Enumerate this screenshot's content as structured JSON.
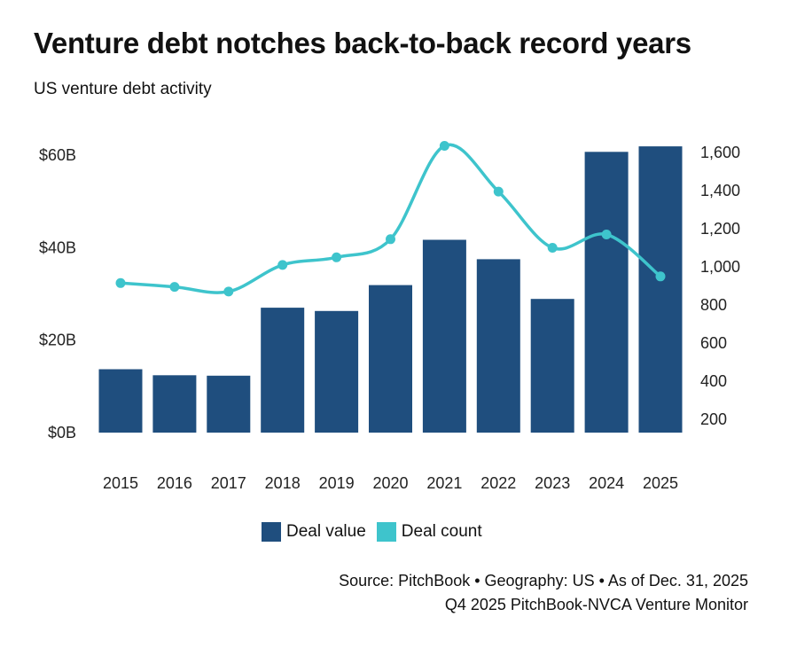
{
  "title": "Venture debt notches back-to-back record years",
  "subtitle": "US venture debt activity",
  "colors": {
    "deal_value": "#1f4e7e",
    "deal_count": "#3ec4cc"
  },
  "chart_data": {
    "type": "bar",
    "categories": [
      "2015",
      "2016",
      "2017",
      "2018",
      "2019",
      "2020",
      "2021",
      "2022",
      "2023",
      "2024",
      "2025"
    ],
    "series": [
      {
        "name": "Deal value",
        "kind": "bar",
        "axis": "left",
        "values": [
          13.7,
          12.4,
          12.3,
          27.0,
          26.3,
          31.9,
          41.7,
          37.5,
          28.9,
          60.7,
          61.9
        ]
      },
      {
        "name": "Deal count",
        "kind": "line",
        "axis": "right",
        "values": [
          915,
          895,
          870,
          1010,
          1050,
          1145,
          1635,
          1395,
          1100,
          1170,
          950
        ]
      }
    ],
    "y_left": {
      "ylim": [
        0,
        65
      ],
      "ticks": [
        0,
        20,
        40,
        60
      ],
      "tick_labels": [
        "$0B",
        "$20B",
        "$40B",
        "$60B"
      ]
    },
    "y_right": {
      "ylim": [
        200,
        1700
      ],
      "ticks": [
        200,
        400,
        600,
        800,
        1000,
        1200,
        1400,
        1600
      ],
      "tick_labels": [
        "200",
        "400",
        "600",
        "800",
        "1,000",
        "1,200",
        "1,400",
        "1,600"
      ]
    },
    "grid": false,
    "legend_position": "bottom-center"
  },
  "legend": {
    "items": [
      {
        "label": "Deal value"
      },
      {
        "label": "Deal count"
      }
    ]
  },
  "source": {
    "line1": "Source: PitchBook • Geography: US • As of Dec. 31, 2025",
    "line2": "Q4 2025 PitchBook-NVCA Venture Monitor"
  }
}
